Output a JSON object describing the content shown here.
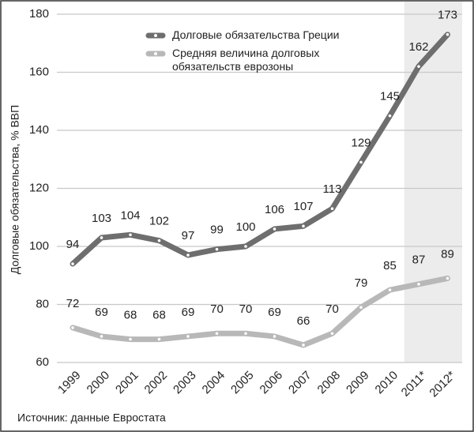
{
  "chart_data": {
    "type": "line",
    "y_label": "Долговые обязательства, % ВВП",
    "source": "Источник: данные Евростата",
    "categories": [
      "1999",
      "2000",
      "2001",
      "2002",
      "2003",
      "2004",
      "2005",
      "2006",
      "2007",
      "2008",
      "2009",
      "2010",
      "2011*",
      "2012*"
    ],
    "series": [
      {
        "name": "Долговые обязательства Греции",
        "color": "#6e6e6e",
        "values": [
          94,
          103,
          104,
          102,
          97,
          99,
          100,
          106,
          107,
          113,
          129,
          145,
          162,
          173
        ]
      },
      {
        "name": "Средняя величина долговых обязательств еврозоны",
        "color": "#b8b8b8",
        "values": [
          72,
          69,
          68,
          68,
          69,
          70,
          70,
          69,
          66,
          70,
          79,
          85,
          87,
          89
        ]
      }
    ],
    "ylim": [
      60,
      180
    ],
    "yticks": [
      60,
      80,
      100,
      120,
      140,
      160,
      180
    ],
    "grid": true
  }
}
